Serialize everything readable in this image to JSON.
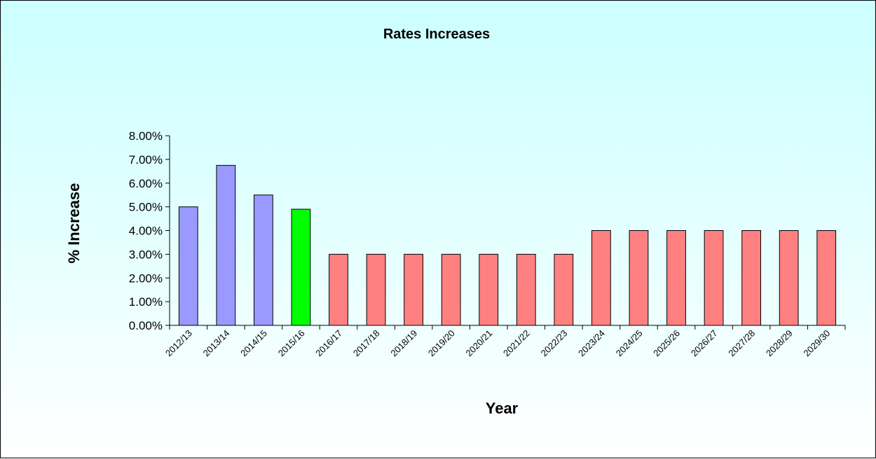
{
  "chart_data": {
    "type": "bar",
    "title": "Rates Increases",
    "xlabel": "Year",
    "ylabel": "% Increase",
    "ylim": [
      0,
      0.08
    ],
    "ytick_labels": [
      "0.00%",
      "1.00%",
      "2.00%",
      "3.00%",
      "4.00%",
      "5.00%",
      "6.00%",
      "7.00%",
      "8.00%"
    ],
    "categories": [
      "2012/13",
      "2013/14",
      "2014/15",
      "2015/16",
      "2016/17",
      "2017/18",
      "2018/19",
      "2019/20",
      "2020/21",
      "2021/22",
      "2022/23",
      "2023/24",
      "2024/25",
      "2025/26",
      "2026/27",
      "2027/28",
      "2028/29",
      "2029/30"
    ],
    "values": [
      0.05,
      0.0675,
      0.055,
      0.049,
      0.03,
      0.03,
      0.03,
      0.03,
      0.03,
      0.03,
      0.03,
      0.04,
      0.04,
      0.04,
      0.04,
      0.04,
      0.04,
      0.04
    ],
    "bar_colors": [
      "#9999ff",
      "#9999ff",
      "#9999ff",
      "#00ff00",
      "#ff8080",
      "#ff8080",
      "#ff8080",
      "#ff8080",
      "#ff8080",
      "#ff8080",
      "#ff8080",
      "#ff8080",
      "#ff8080",
      "#ff8080",
      "#ff8080",
      "#ff8080",
      "#ff8080",
      "#ff8080"
    ],
    "grid": false,
    "legend": "none"
  }
}
